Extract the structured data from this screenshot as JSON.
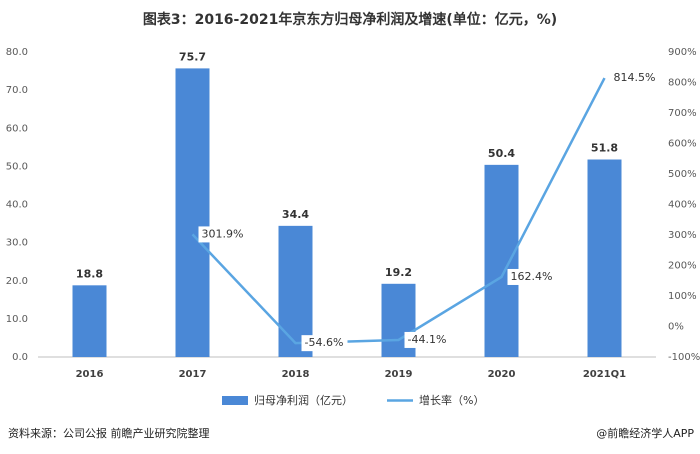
{
  "chart_data": {
    "type": "bar",
    "title": "图表3：2016-2021年京东方归母净利润及增速(单位：亿元，%)",
    "categories": [
      "2016",
      "2017",
      "2018",
      "2019",
      "2020",
      "2021Q1"
    ],
    "series": [
      {
        "name": "归母净利润（亿元）",
        "type": "bar",
        "color": "#4a88d6",
        "values": [
          18.8,
          75.7,
          34.4,
          19.2,
          50.4,
          51.8
        ]
      },
      {
        "name": "增长率（%）",
        "type": "line",
        "axis": "y2",
        "color": "#5aa5e2",
        "values": [
          null,
          301.9,
          -54.6,
          -44.1,
          162.4,
          814.5
        ],
        "value_labels": [
          null,
          "301.9%",
          "-54.6%",
          "-44.1%",
          "162.4%",
          "814.5%"
        ]
      }
    ],
    "ylim": [
      0,
      80
    ],
    "yticks": [
      {
        "value": 0,
        "label": "0.0"
      },
      {
        "value": 10,
        "label": "10.0"
      },
      {
        "value": 20,
        "label": "20.0"
      },
      {
        "value": 30,
        "label": "30.0"
      },
      {
        "value": 40,
        "label": "40.0"
      },
      {
        "value": 50,
        "label": "50.0"
      },
      {
        "value": 60,
        "label": "60.0"
      },
      {
        "value": 70,
        "label": "70.0"
      },
      {
        "value": 80,
        "label": "80.0"
      }
    ],
    "y2lim": [
      -100,
      900
    ],
    "y2ticks": [
      {
        "value": -100,
        "label": "-100%"
      },
      {
        "value": 0,
        "label": "0%"
      },
      {
        "value": 100,
        "label": "100%"
      },
      {
        "value": 200,
        "label": "200%"
      },
      {
        "value": 300,
        "label": "300%"
      },
      {
        "value": 400,
        "label": "400%"
      },
      {
        "value": 500,
        "label": "500%"
      },
      {
        "value": 600,
        "label": "600%"
      },
      {
        "value": 700,
        "label": "700%"
      },
      {
        "value": 800,
        "label": "800%"
      },
      {
        "value": 900,
        "label": "900%"
      }
    ],
    "grid": false,
    "legend": "bottom",
    "source": "资料来源：公司公报 前瞻产业研究院整理",
    "credit": "@前瞻经济学人APP"
  }
}
